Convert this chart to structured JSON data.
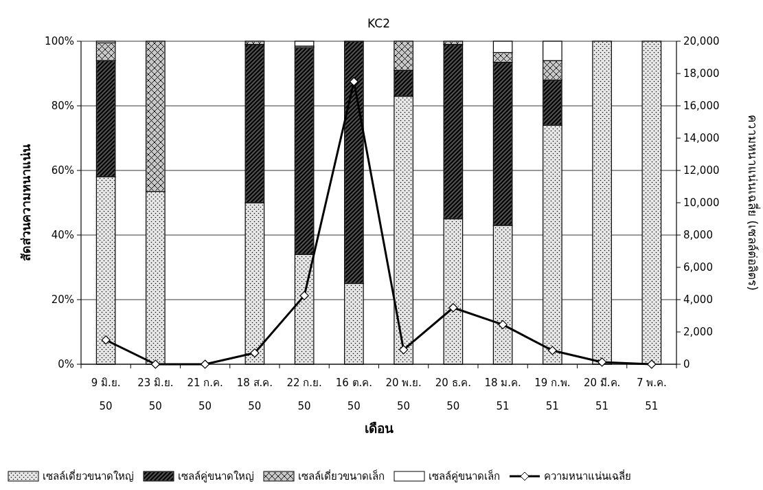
{
  "chart_data": {
    "type": "bar",
    "title": "KC2",
    "xlabel": "เดือน",
    "ylabel": "สัดส่วนความหนาแน่น",
    "y2label": "ความหนาแน่นเฉลี่ย (เซลล์ต่อลิตร)",
    "categories": [
      "9 มิ.ย.\n50",
      "23 มิ.ย.\n50",
      "21 ก.ค.\n50",
      "18 ส.ค.\n50",
      "22 ก.ย.\n50",
      "16 ต.ค.\n50",
      "20 พ.ย.\n50",
      "20 ธ.ค.\n50",
      "18 ม.ค.\n51",
      "19 ก.พ.\n51",
      "20 มี.ค.\n51",
      "7 พ.ค.\n51"
    ],
    "stacked": true,
    "series": [
      {
        "name": "เซลล์เดี่ยวขนาดใหญ่",
        "color": "#e6e6e6",
        "values": [
          58,
          53.5,
          null,
          50,
          34,
          25,
          83,
          45,
          43,
          74,
          100,
          100
        ]
      },
      {
        "name": "เซลล์คู่ขนาดใหญ่",
        "color": "#505050",
        "values": [
          36,
          0,
          null,
          49,
          64,
          75,
          8,
          54,
          50.5,
          14,
          0,
          0
        ]
      },
      {
        "name": "เซลล์เดี่ยวขนาดเล็ก",
        "color": "#c8c8c8",
        "values": [
          5.5,
          46.5,
          null,
          1,
          0.5,
          0,
          9,
          1,
          3,
          6,
          0,
          0
        ]
      },
      {
        "name": "เซลล์คู่ขนาดเล็ก",
        "color": "#ffffff",
        "values": [
          0.5,
          0,
          null,
          0,
          1.5,
          0,
          0,
          0,
          3.5,
          6,
          0,
          0
        ]
      },
      {
        "name": "ความหนาแน่นเฉลี่ย",
        "type": "line",
        "axis": "y2",
        "color": "#000000",
        "marker": "diamond",
        "line_style": "solid",
        "values": [
          1500,
          0,
          0,
          700,
          4250,
          17500,
          900,
          3500,
          2450,
          850,
          130,
          0
        ]
      }
    ],
    "ylim": [
      0,
      100
    ],
    "yticks": [
      {
        "value": 0,
        "label": "0%"
      },
      {
        "value": 20,
        "label": "20%"
      },
      {
        "value": 40,
        "label": "40%"
      },
      {
        "value": 60,
        "label": "60%"
      },
      {
        "value": 80,
        "label": "80%"
      },
      {
        "value": 100,
        "label": "100%"
      }
    ],
    "y2lim": [
      0,
      20000
    ],
    "y2ticks": [
      {
        "value": 0,
        "label": "0"
      },
      {
        "value": 2000,
        "label": "2,000"
      },
      {
        "value": 4000,
        "label": "4,000"
      },
      {
        "value": 6000,
        "label": "6,000"
      },
      {
        "value": 8000,
        "label": "8,000"
      },
      {
        "value": 10000,
        "label": "10,000"
      },
      {
        "value": 12000,
        "label": "12,000"
      },
      {
        "value": 14000,
        "label": "14,000"
      },
      {
        "value": 16000,
        "label": "16,000"
      },
      {
        "value": 18000,
        "label": "18,000"
      },
      {
        "value": 20000,
        "label": "20,000"
      }
    ],
    "grid": "y",
    "legend": "bottom"
  }
}
